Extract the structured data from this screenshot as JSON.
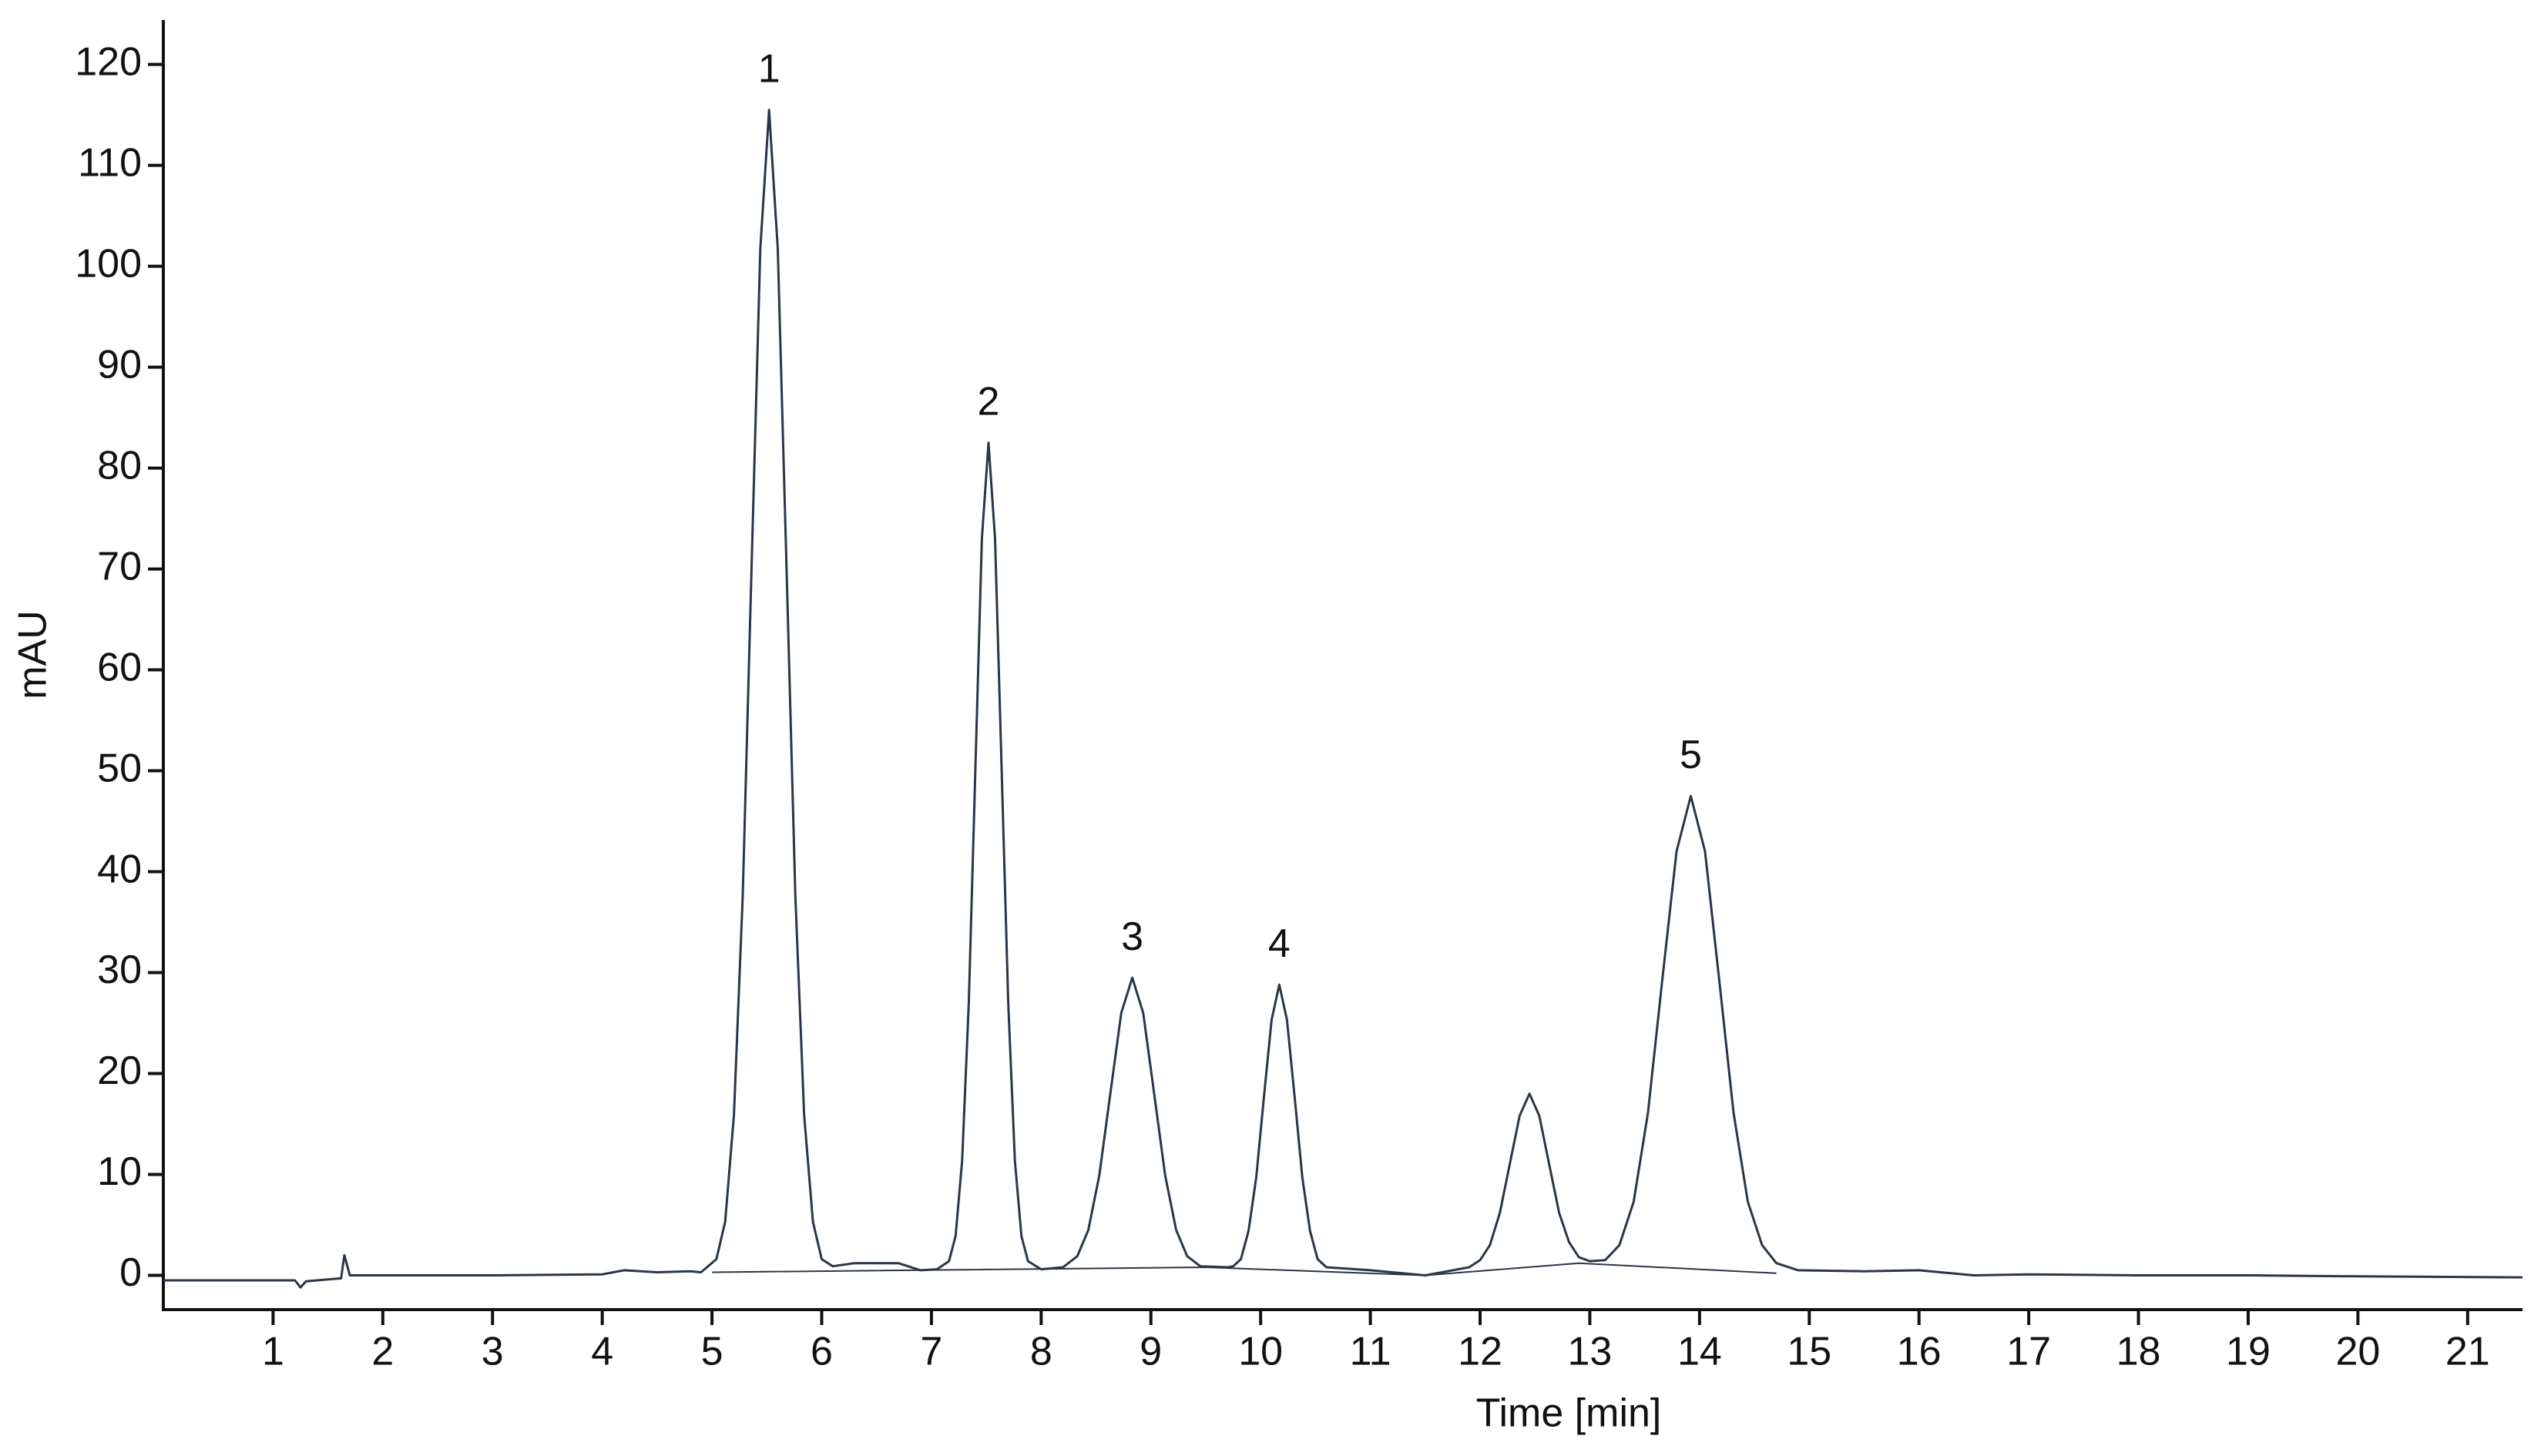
{
  "chart_data": {
    "type": "line",
    "x_label": "Time [min]",
    "y_label": "mAU",
    "xlim": [
      0,
      21.5
    ],
    "xticks": [
      1,
      2,
      3,
      4,
      5,
      6,
      7,
      8,
      9,
      10,
      11,
      12,
      13,
      14,
      15,
      16,
      17,
      18,
      19,
      20,
      21
    ],
    "ylim": [
      -3.4,
      124.4
    ],
    "yticks": [
      0,
      10,
      20,
      30,
      40,
      50,
      60,
      70,
      80,
      90,
      100,
      110,
      120
    ],
    "series": [
      {
        "color": "#2b3645",
        "x": [
          0,
          1,
          1.2,
          1.25,
          1.3,
          1.5,
          1.62,
          1.65,
          1.7,
          2,
          3,
          4,
          4.2,
          4.5,
          4.8,
          4.9,
          5.04,
          5.12,
          5.2,
          5.28,
          5.36,
          5.44,
          5.52,
          5.6,
          5.68,
          5.76,
          5.84,
          5.92,
          6.0,
          6.1,
          6.3,
          6.7,
          6.9,
          7.05,
          7.16,
          7.22,
          7.28,
          7.34,
          7.4,
          7.46,
          7.52,
          7.58,
          7.64,
          7.7,
          7.76,
          7.82,
          7.88,
          8.0,
          8.2,
          8.33,
          8.43,
          8.53,
          8.63,
          8.73,
          8.83,
          8.93,
          9.03,
          9.13,
          9.23,
          9.33,
          9.45,
          9.7,
          9.75,
          9.82,
          9.89,
          9.96,
          10.03,
          10.1,
          10.17,
          10.24,
          10.31,
          10.38,
          10.45,
          10.52,
          10.6,
          11.0,
          11.5,
          11.9,
          12.0,
          12.09,
          12.18,
          12.27,
          12.36,
          12.45,
          12.54,
          12.63,
          12.72,
          12.81,
          12.9,
          13.0,
          13.14,
          13.27,
          13.4,
          13.53,
          13.66,
          13.79,
          13.92,
          14.05,
          14.18,
          14.31,
          14.44,
          14.57,
          14.7,
          14.9,
          15.5,
          16,
          16.5,
          17,
          18,
          19,
          20,
          21.5
        ],
        "values": [
          -0.5,
          -0.5,
          -0.5,
          -1.2,
          -0.6,
          -0.4,
          -0.3,
          2.0,
          0,
          0,
          0,
          0.1,
          0.5,
          0.3,
          0.4,
          0.3,
          1.6,
          5.3,
          15.9,
          37.6,
          70,
          101.7,
          115.5,
          101.7,
          70,
          37.6,
          15.9,
          5.3,
          1.6,
          0.9,
          1.2,
          1.2,
          0.5,
          0.6,
          1.4,
          3.9,
          11.4,
          27,
          50,
          73,
          82.5,
          73,
          50,
          27,
          11.4,
          3.9,
          1.4,
          0.6,
          0.8,
          1.9,
          4.5,
          9.9,
          18,
          26,
          29.5,
          26,
          18,
          9.9,
          4.5,
          1.9,
          0.9,
          0.8,
          0.9,
          1.6,
          4.4,
          9.7,
          17.7,
          25.3,
          28.8,
          25.3,
          17.7,
          9.7,
          4.4,
          1.6,
          0.8,
          0.5,
          0,
          0.8,
          1.5,
          3.0,
          6.2,
          11.0,
          15.8,
          18,
          15.8,
          11,
          6.2,
          3.3,
          1.8,
          1.4,
          1.5,
          3.0,
          7.3,
          16.1,
          29.2,
          42,
          47.5,
          42,
          29.2,
          16.1,
          7.3,
          3.0,
          1.2,
          0.5,
          0.4,
          0.5,
          0,
          0.1,
          0,
          0,
          -0.1,
          -0.2
        ]
      },
      {
        "color": "#2b3645",
        "x": [
          5,
          9.5,
          11.5,
          12.9,
          14.7
        ],
        "values": [
          0.3,
          0.8,
          0,
          1.2,
          0.2
        ]
      }
    ],
    "annotations": [
      {
        "text": "1",
        "x": 5.52
      },
      {
        "text": "2",
        "x": 7.52
      },
      {
        "text": "3",
        "x": 8.83
      },
      {
        "text": "4",
        "x": 10.17
      },
      {
        "text": "5",
        "x": 13.92
      }
    ]
  }
}
